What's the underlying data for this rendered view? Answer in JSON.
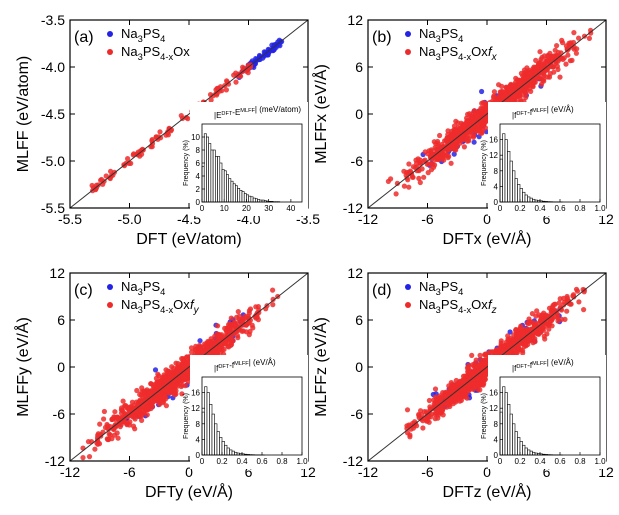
{
  "figure": {
    "colors": {
      "na3ps4": "#2323e6",
      "na3ps4o": "#ee2b2b",
      "axis": "#000000",
      "diag": "#333333",
      "hist_bar": "#ffffff"
    }
  },
  "chart_data": [
    {
      "panel": "(a)",
      "type": "scatter",
      "xlabel": "DFT (eV/atom)",
      "ylabel": "MLFF (eV/atom)",
      "annotation": "",
      "xlim": [
        -5.5,
        -3.5
      ],
      "ylim": [
        -5.5,
        -3.5
      ],
      "xticks": [
        -5.5,
        -5.0,
        -4.5,
        -4.0,
        -3.5
      ],
      "xtick_labels": [
        "-5.5",
        "-5.0",
        "-4.5",
        "-4.0",
        "-3.5"
      ],
      "yticks": [
        -5.5,
        -5.0,
        -4.5,
        -4.0,
        -3.5
      ],
      "ytick_labels": [
        "-5.5",
        "-5.0",
        "-4.5",
        "-4.0",
        "-3.5"
      ],
      "legend_position": "top-left",
      "series": [
        {
          "name": "Na3PS4",
          "color": "#2323e6",
          "pattern": "line-segment",
          "x_range": [
            -4.08,
            -3.72
          ],
          "spread": 0.02,
          "count": 70
        },
        {
          "name": "Na3PS4-xOx",
          "color": "#ee2b2b",
          "pattern": "line-segment",
          "x_range": [
            -5.32,
            -3.97
          ],
          "spread": 0.025,
          "count": 110
        }
      ],
      "inset": {
        "type": "histogram",
        "title": "|EDFT-EMLFF| (meV/atom)",
        "xlabel": "",
        "ylabel": "Frequency (%)",
        "xlim": [
          0,
          45
        ],
        "ylim": [
          0,
          12
        ],
        "xticks": [
          0,
          10,
          20,
          30,
          40
        ],
        "xtick_labels": [
          "0",
          "10",
          "20",
          "30",
          "40"
        ],
        "yticks": [
          0,
          2,
          4,
          6,
          8,
          10
        ],
        "ytick_labels": [
          "0",
          "2",
          "4",
          "6",
          "8",
          "10"
        ],
        "bin_width": 1,
        "values": [
          5.5,
          10.5,
          10,
          9,
          8,
          8,
          7,
          7,
          6,
          5,
          4.8,
          4.2,
          3.6,
          3.2,
          2.8,
          2.5,
          2.1,
          1.8,
          1.6,
          1.3,
          1.1,
          0.9,
          0.8,
          0.6,
          0.5,
          0.4,
          0.3,
          0.3,
          0.2,
          0.15,
          0.1,
          0.1,
          0.05,
          0.05,
          0.05
        ]
      }
    },
    {
      "panel": "(b)",
      "type": "scatter",
      "xlabel": "DFTx (eV/Å)",
      "ylabel": "MLFFx (eV/Å)",
      "annotation": "f_x",
      "xlim": [
        -12,
        12
      ],
      "ylim": [
        -12,
        12
      ],
      "xticks": [
        -12,
        -6,
        0,
        6,
        12
      ],
      "xtick_labels": [
        "-12",
        "-6",
        "0",
        "6",
        "12"
      ],
      "yticks": [
        -12,
        -6,
        0,
        6,
        12
      ],
      "ytick_labels": [
        "-12",
        "-6",
        "0",
        "6",
        "12"
      ],
      "legend_position": "top-left",
      "series": [
        {
          "name": "Na3PS4",
          "color": "#2323e6",
          "pattern": "cloud",
          "x_range": [
            -7,
            7
          ],
          "spread": 0.9,
          "count": 110
        },
        {
          "name": "Na3PS4-xOx",
          "color": "#ee2b2b",
          "pattern": "cloud",
          "x_range": [
            -10,
            11
          ],
          "spread": 0.8,
          "count": 950
        }
      ],
      "inset": {
        "type": "histogram",
        "title": "|fDFT-fMLFF| (eV/Å)",
        "xlabel": "",
        "ylabel": "Frequency (%)",
        "xlim": [
          0,
          1.0
        ],
        "ylim": [
          0,
          20
        ],
        "xticks": [
          0,
          0.2,
          0.4,
          0.6,
          0.8,
          1.0
        ],
        "xtick_labels": [
          "0",
          "0.2",
          "0.4",
          "0.6",
          "0.8",
          "1.0"
        ],
        "yticks": [
          0,
          4,
          8,
          12,
          16
        ],
        "ytick_labels": [
          "0",
          "4",
          "8",
          "12",
          "16"
        ],
        "bin_width": 0.025,
        "values": [
          11,
          17.5,
          16,
          13,
          10.5,
          8,
          6,
          4.5,
          3.5,
          2.5,
          1.8,
          1.3,
          1.0,
          0.7,
          0.5,
          0.4,
          0.3,
          0.2,
          0.15,
          0.1,
          0.08,
          0.05,
          0.04,
          0.03,
          0.02
        ]
      }
    },
    {
      "panel": "(c)",
      "type": "scatter",
      "xlabel": "DFTy (eV/Å)",
      "ylabel": "MLFFy (eV/Å)",
      "annotation": "f_y",
      "xlim": [
        -12,
        12
      ],
      "ylim": [
        -12,
        12
      ],
      "xticks": [
        -12,
        -6,
        0,
        6,
        12
      ],
      "xtick_labels": [
        "-12",
        "-6",
        "0",
        "6",
        "12"
      ],
      "yticks": [
        -12,
        -6,
        0,
        6,
        12
      ],
      "ytick_labels": [
        "-12",
        "-6",
        "0",
        "6",
        "12"
      ],
      "legend_position": "top-left",
      "series": [
        {
          "name": "Na3PS4",
          "color": "#2323e6",
          "pattern": "cloud",
          "x_range": [
            -7,
            7
          ],
          "spread": 0.9,
          "count": 110
        },
        {
          "name": "Na3PS4-xOx",
          "color": "#ee2b2b",
          "pattern": "cloud",
          "x_range": [
            -11,
            9
          ],
          "spread": 0.8,
          "count": 950
        }
      ],
      "inset": {
        "type": "histogram",
        "title": "|fDFT-fMLFF| (eV/Å)",
        "xlabel": "",
        "ylabel": "Frequency (%)",
        "xlim": [
          0,
          1.0
        ],
        "ylim": [
          0,
          20
        ],
        "xticks": [
          0,
          0.2,
          0.4,
          0.6,
          0.8,
          1.0
        ],
        "xtick_labels": [
          "0",
          "0.2",
          "0.4",
          "0.6",
          "0.8",
          "1.0"
        ],
        "yticks": [
          0,
          4,
          8,
          12,
          16
        ],
        "ytick_labels": [
          "0",
          "4",
          "8",
          "12",
          "16"
        ],
        "bin_width": 0.025,
        "values": [
          11,
          17.5,
          16,
          13,
          10.5,
          8,
          6,
          4.5,
          3.5,
          2.5,
          1.8,
          1.3,
          1.0,
          0.7,
          0.5,
          0.4,
          0.3,
          0.2,
          0.15,
          0.1,
          0.08,
          0.05,
          0.04,
          0.03,
          0.02
        ]
      }
    },
    {
      "panel": "(d)",
      "type": "scatter",
      "xlabel": "DFTz (eV/Å)",
      "ylabel": "MLFFz (eV/Å)",
      "annotation": "f_z",
      "xlim": [
        -12,
        12
      ],
      "ylim": [
        -12,
        12
      ],
      "xticks": [
        -12,
        -6,
        0,
        6,
        12
      ],
      "xtick_labels": [
        "-12",
        "-6",
        "0",
        "6",
        "12"
      ],
      "yticks": [
        -12,
        -6,
        0,
        6,
        12
      ],
      "ytick_labels": [
        "-12",
        "-6",
        "0",
        "6",
        "12"
      ],
      "legend_position": "top-left",
      "series": [
        {
          "name": "Na3PS4",
          "color": "#2323e6",
          "pattern": "cloud",
          "x_range": [
            -7,
            8
          ],
          "spread": 0.9,
          "count": 110
        },
        {
          "name": "Na3PS4-xOx",
          "color": "#ee2b2b",
          "pattern": "cloud",
          "x_range": [
            -9,
            10
          ],
          "spread": 0.8,
          "count": 950
        }
      ],
      "inset": {
        "type": "histogram",
        "title": "|fDFT-fMLFF| (eV/Å)",
        "xlabel": "",
        "ylabel": "Frequency (%)",
        "xlim": [
          0,
          1.0
        ],
        "ylim": [
          0,
          20
        ],
        "xticks": [
          0,
          0.2,
          0.4,
          0.6,
          0.8,
          1.0
        ],
        "xtick_labels": [
          "0",
          "0.2",
          "0.4",
          "0.6",
          "0.8",
          "1.0"
        ],
        "yticks": [
          0,
          4,
          8,
          12,
          16
        ],
        "ytick_labels": [
          "0",
          "4",
          "8",
          "12",
          "16"
        ],
        "bin_width": 0.025,
        "values": [
          11,
          17.5,
          16,
          13,
          10.5,
          8,
          6,
          4.5,
          3.5,
          2.5,
          1.8,
          1.3,
          1.0,
          0.7,
          0.5,
          0.4,
          0.3,
          0.2,
          0.15,
          0.1,
          0.08,
          0.05,
          0.04,
          0.03,
          0.02
        ]
      }
    }
  ]
}
